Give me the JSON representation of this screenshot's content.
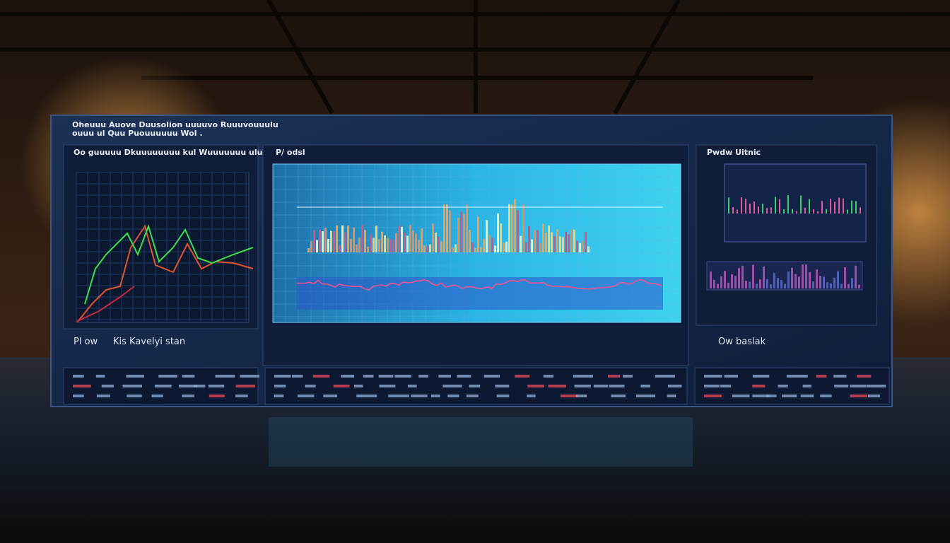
{
  "header": {
    "line1": "Oheuuu Auove Duusolion uuuuvo Ruuuvouuulu",
    "line2": "ouuu ul Quu Puouuuuuu Wol ."
  },
  "left_panel": {
    "title": "Oo guuuuu Dkuuuuuuuu kul Wuuuuuuu uluuo",
    "caption_a": "Pl ow",
    "caption_b": "Kis Kavelyi stan"
  },
  "center_panel": {
    "title": "P/ odsl"
  },
  "right_panel": {
    "title": "Pwdw Uitnic",
    "caption": "Ow baslak"
  }
}
